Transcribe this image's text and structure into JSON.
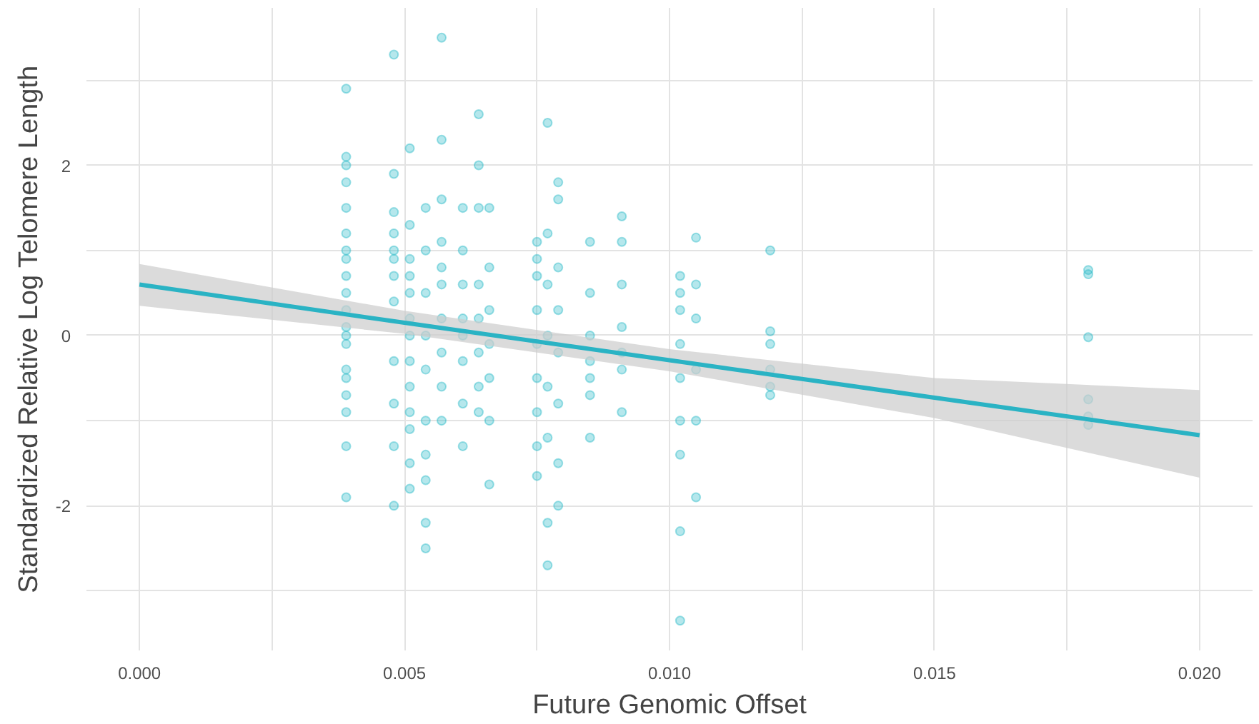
{
  "chart_data": {
    "type": "scatter",
    "xlabel": "Future Genomic Offset",
    "ylabel": "Standardized Relative Log Telomere Length",
    "xlim": [
      -0.001,
      0.021
    ],
    "ylim": [
      -3.7,
      3.85
    ],
    "xticks": [
      {
        "value": 0,
        "label": "0.000"
      },
      {
        "value": 0.0025,
        "label": null
      },
      {
        "value": 0.005,
        "label": "0.005"
      },
      {
        "value": 0.0075,
        "label": null
      },
      {
        "value": 0.01,
        "label": "0.010"
      },
      {
        "value": 0.0125,
        "label": null
      },
      {
        "value": 0.015,
        "label": "0.015"
      },
      {
        "value": 0.0175,
        "label": null
      },
      {
        "value": 0.02,
        "label": "0.020"
      }
    ],
    "yticks": [
      {
        "value": -3,
        "label": null
      },
      -2,
      {
        "value": -1,
        "label": null
      },
      0,
      {
        "value": 1,
        "label": null
      },
      2,
      {
        "value": 3,
        "label": null
      }
    ],
    "grid": true,
    "series": [
      {
        "color": "#2bbbc8",
        "marker": "circle",
        "x": [
          0.0039,
          0.0039,
          0.0039,
          0.0039,
          0.0039,
          0.0039,
          0.0039,
          0.0039,
          0.0039,
          0.0039,
          0.0039,
          0.0039,
          0.0039,
          0.0039,
          0.0039,
          0.0039,
          0.0039,
          0.0039,
          0.0039,
          0.0039,
          0.0048,
          0.0048,
          0.0048,
          0.0048,
          0.0048,
          0.0048,
          0.0048,
          0.0048,
          0.0048,
          0.0048,
          0.0048,
          0.0048,
          0.0051,
          0.0051,
          0.0051,
          0.0051,
          0.0051,
          0.0051,
          0.0051,
          0.0051,
          0.0051,
          0.0051,
          0.0051,
          0.0051,
          0.0051,
          0.0054,
          0.0054,
          0.0054,
          0.0054,
          0.0054,
          0.0054,
          0.0054,
          0.0054,
          0.0054,
          0.0054,
          0.0057,
          0.0057,
          0.0057,
          0.0057,
          0.0057,
          0.0057,
          0.0057,
          0.0057,
          0.0057,
          0.0057,
          0.0061,
          0.0061,
          0.0061,
          0.0061,
          0.0061,
          0.0061,
          0.0061,
          0.0061,
          0.0064,
          0.0064,
          0.0064,
          0.0064,
          0.0064,
          0.0064,
          0.0064,
          0.0064,
          0.0066,
          0.0066,
          0.0066,
          0.0066,
          0.0066,
          0.0066,
          0.0066,
          0.0075,
          0.0075,
          0.0075,
          0.0075,
          0.0075,
          0.0075,
          0.0075,
          0.0075,
          0.0075,
          0.0077,
          0.0077,
          0.0077,
          0.0077,
          0.0077,
          0.0077,
          0.0077,
          0.0077,
          0.0079,
          0.0079,
          0.0079,
          0.0079,
          0.0079,
          0.0079,
          0.0079,
          0.0079,
          0.0085,
          0.0085,
          0.0085,
          0.0085,
          0.0085,
          0.0085,
          0.0085,
          0.0091,
          0.0091,
          0.0091,
          0.0091,
          0.0091,
          0.0091,
          0.0091,
          0.0102,
          0.0102,
          0.0102,
          0.0102,
          0.0102,
          0.0102,
          0.0102,
          0.0102,
          0.0102,
          0.0105,
          0.0105,
          0.0105,
          0.0105,
          0.0105,
          0.0105,
          0.0119,
          0.0119,
          0.0119,
          0.0119,
          0.0119,
          0.0119,
          0.0179,
          0.0179,
          0.0179,
          0.0179,
          0.0179,
          0.0179
        ],
        "values": [
          2.9,
          2.1,
          2.0,
          1.8,
          1.5,
          1.2,
          0.9,
          0.7,
          0.5,
          0.3,
          0.1,
          -0.1,
          -0.4,
          -0.7,
          -0.9,
          -1.3,
          -1.9,
          1.0,
          0.0,
          -0.5,
          3.3,
          1.9,
          1.45,
          1.2,
          0.9,
          0.7,
          0.4,
          -0.3,
          -0.8,
          -1.3,
          -2.0,
          1.0,
          2.2,
          1.3,
          0.9,
          0.5,
          0.2,
          0.0,
          -0.3,
          -0.6,
          -0.9,
          -1.1,
          -1.5,
          -1.8,
          0.7,
          1.5,
          1.0,
          0.5,
          0.0,
          -0.4,
          -1.0,
          -1.4,
          -2.2,
          -2.5,
          -1.7,
          3.5,
          2.3,
          1.6,
          1.1,
          0.6,
          0.2,
          -0.2,
          -0.6,
          -1.0,
          0.8,
          1.5,
          1.0,
          0.6,
          0.2,
          -0.3,
          -0.8,
          -1.3,
          0.0,
          2.6,
          2.0,
          1.5,
          0.6,
          0.2,
          -0.2,
          -0.6,
          -0.9,
          1.5,
          0.8,
          0.3,
          -0.1,
          -0.5,
          -1.0,
          -1.75,
          1.1,
          0.7,
          0.3,
          -0.1,
          -0.5,
          -0.9,
          -1.3,
          -1.65,
          0.9,
          2.5,
          1.2,
          0.6,
          0.0,
          -0.6,
          -1.2,
          -2.2,
          -2.7,
          1.8,
          1.6,
          0.8,
          0.3,
          -0.2,
          -0.8,
          -1.5,
          -2.0,
          1.1,
          0.5,
          0.0,
          -0.3,
          -0.7,
          -1.2,
          -0.5,
          1.4,
          1.1,
          0.6,
          0.1,
          -0.4,
          -0.9,
          -0.2,
          0.7,
          0.3,
          -0.1,
          -0.5,
          -1.0,
          -1.4,
          -2.3,
          -3.35,
          0.5,
          1.15,
          0.6,
          0.2,
          -0.4,
          -1.0,
          -1.9,
          1.0,
          0.05,
          -0.1,
          -0.4,
          -0.6,
          -0.7,
          0.77,
          0.72,
          -0.02,
          -0.75,
          -0.95,
          -1.05
        ]
      },
      {
        "type": "line",
        "marker": "none",
        "color": "#2ab3c4",
        "x": [
          0,
          0.005,
          0.01,
          0.015,
          0.02
        ],
        "values": [
          0.6,
          0.15,
          -0.29,
          -0.73,
          -1.17
        ],
        "lower": [
          0.35,
          0.02,
          -0.42,
          -0.97,
          -1.67
        ],
        "upper": [
          0.84,
          0.29,
          -0.16,
          -0.5,
          -0.64
        ]
      }
    ]
  }
}
